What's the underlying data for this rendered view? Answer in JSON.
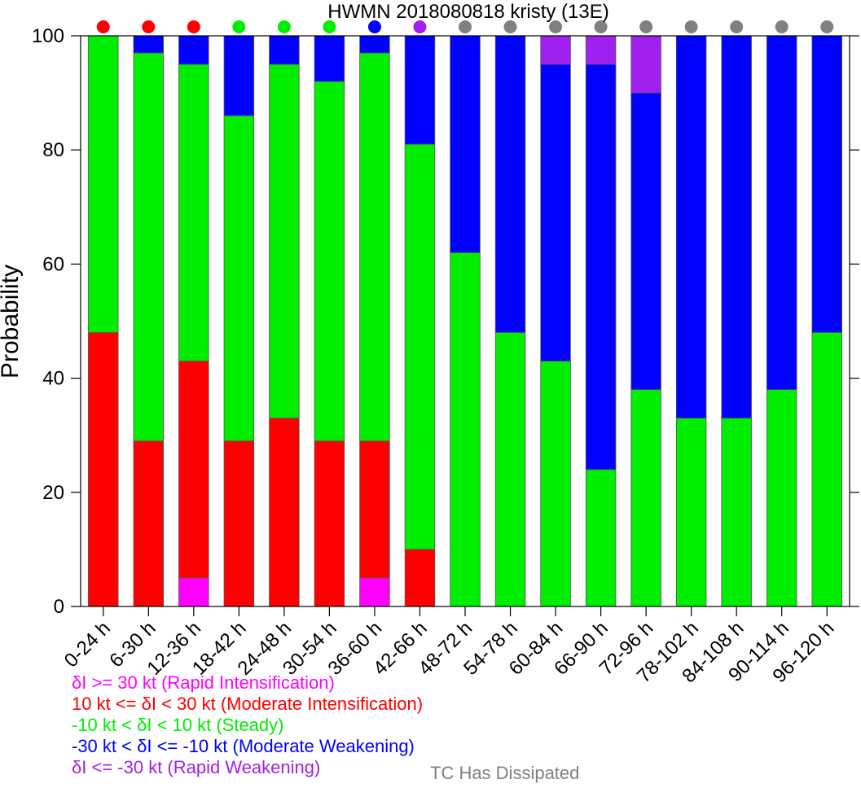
{
  "chart_data": {
    "type": "bar",
    "stacked": true,
    "title": "HWMN 2018080818 kristy (13E)",
    "xlabel": "",
    "ylabel": "Probability",
    "ylim": [
      0,
      100
    ],
    "yticks": [
      0,
      20,
      40,
      60,
      80,
      100
    ],
    "grid": false,
    "categories": [
      "0-24 h",
      "6-30 h",
      "12-36 h",
      "18-42 h",
      "24-48 h",
      "30-54 h",
      "36-60 h",
      "42-66 h",
      "48-72 h",
      "54-78 h",
      "60-84 h",
      "66-90 h",
      "72-96 h",
      "78-102 h",
      "84-108 h",
      "90-114 h",
      "96-120 h"
    ],
    "series": [
      {
        "key": "ri",
        "color": "#ff00ff",
        "values": [
          0,
          0,
          5,
          0,
          0,
          0,
          5,
          0,
          0,
          0,
          0,
          0,
          0,
          0,
          0,
          0,
          0
        ]
      },
      {
        "key": "mi",
        "color": "#ff0000",
        "values": [
          48,
          29,
          38,
          29,
          33,
          29,
          24,
          10,
          0,
          0,
          0,
          0,
          0,
          0,
          0,
          0,
          0
        ]
      },
      {
        "key": "steady",
        "color": "#00ee00",
        "values": [
          52,
          68,
          52,
          57,
          62,
          63,
          68,
          71,
          62,
          48,
          43,
          24,
          38,
          33,
          33,
          38,
          48
        ]
      },
      {
        "key": "mw",
        "color": "#0000ff",
        "values": [
          0,
          3,
          5,
          14,
          5,
          8,
          3,
          19,
          38,
          52,
          52,
          71,
          52,
          67,
          67,
          62,
          52
        ]
      },
      {
        "key": "rw",
        "color": "#a020f0",
        "values": [
          0,
          0,
          0,
          0,
          0,
          0,
          0,
          0,
          0,
          0,
          5,
          5,
          10,
          0,
          0,
          0,
          0
        ]
      }
    ],
    "category_dot_colors": [
      "#ff0000",
      "#ff0000",
      "#ff0000",
      "#00ee00",
      "#00ee00",
      "#00ee00",
      "#0000ff",
      "#a020f0",
      "#808080",
      "#808080",
      "#808080",
      "#808080",
      "#808080",
      "#808080",
      "#808080",
      "#808080",
      "#808080"
    ],
    "legend": [
      {
        "label": "δI >= 30 kt (Rapid Intensification)",
        "color": "#ff00ff"
      },
      {
        "label": "10 kt <= δI < 30 kt (Moderate Intensification)",
        "color": "#ff0000"
      },
      {
        "label": "-10 kt < δI < 10 kt (Steady)",
        "color": "#00ee00"
      },
      {
        "label": "-30 kt < δI <= -10 kt (Moderate Weakening)",
        "color": "#0000ff"
      },
      {
        "label": "δI <= -30 kt (Rapid Weakening)",
        "color": "#a020f0"
      }
    ],
    "dissipated_label": "TC Has Dissipated",
    "dissipated_color": "#808080"
  }
}
